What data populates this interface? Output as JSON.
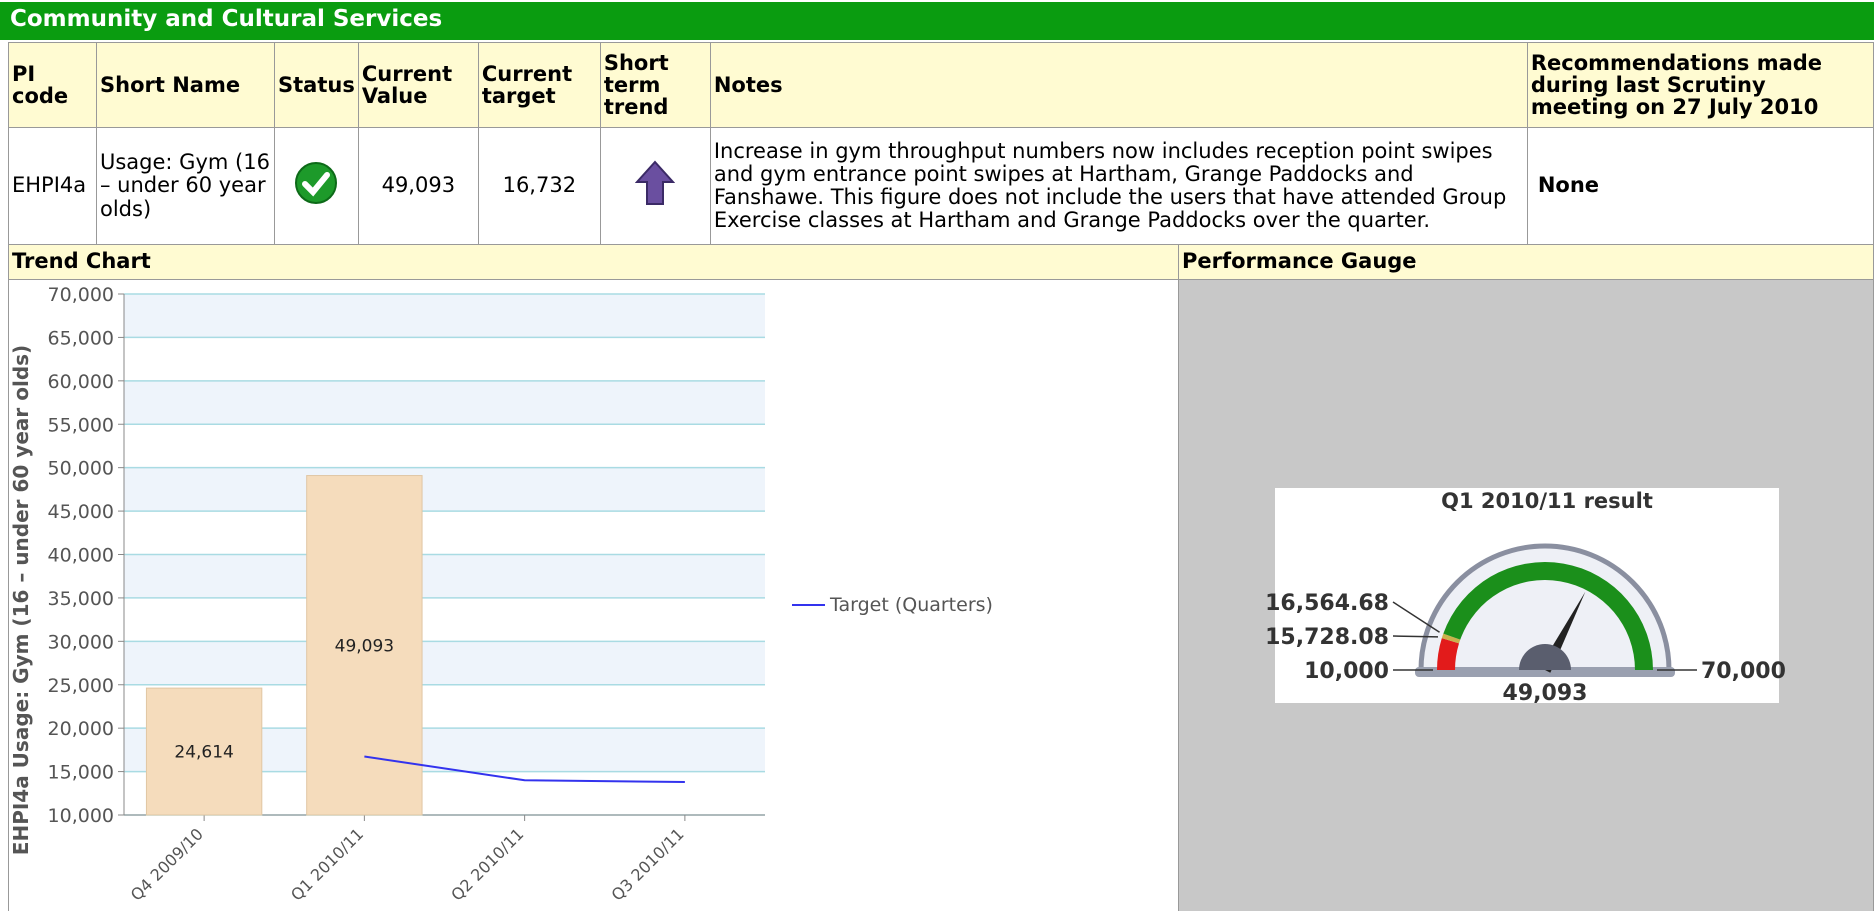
{
  "section_title": "Community and Cultural Services",
  "table": {
    "headers": [
      "PI code",
      "Short Name",
      "Status",
      "Current Value",
      "Current target",
      "Short term trend",
      "Notes",
      "Recommendations made during last Scrutiny meeting on 27 July 2010"
    ],
    "row": {
      "pi_code": "EHPI4a",
      "short_name": "Usage: Gym (16 – under 60 year olds)",
      "current_value": "49,093",
      "current_target": "16,732",
      "notes": "Increase in gym throughput numbers now includes reception point swipes and gym entrance point swipes at Hartham, Grange Paddocks and Fanshawe. This figure does not include the users that have attended Group Exercise classes at Hartham and Grange Paddocks over the quarter.",
      "recommendations": "None"
    }
  },
  "trend_chart_title": "Trend Chart",
  "gauge_panel_title": "Performance Gauge",
  "chart_data": [
    {
      "type": "bar",
      "y_label": "EHPI4a Usage: Gym (16 – under 60 year olds)",
      "categories": [
        "Q4 2009/10",
        "Q1 2010/11",
        "Q2 2010/11",
        "Q3 2010/11"
      ],
      "values": [
        24614,
        49093,
        null,
        null
      ],
      "value_labels": [
        "24,614",
        "49,093",
        null,
        null
      ],
      "color": "#f5dcbc",
      "lines": [
        {
          "name": "Target (Quarters)",
          "color": "#3333ee",
          "values": [
            null,
            16732,
            14000,
            13800
          ]
        }
      ],
      "ylim": [
        10000,
        70000
      ],
      "yticks": [
        {
          "value": 10000,
          "label": "10,000"
        },
        {
          "value": 15000,
          "label": "15,000"
        },
        {
          "value": 20000,
          "label": "20,000"
        },
        {
          "value": 25000,
          "label": "25,000"
        },
        {
          "value": 30000,
          "label": "30,000"
        },
        {
          "value": 35000,
          "label": "35,000"
        },
        {
          "value": 40000,
          "label": "40,000"
        },
        {
          "value": 45000,
          "label": "45,000"
        },
        {
          "value": 50000,
          "label": "50,000"
        },
        {
          "value": 55000,
          "label": "55,000"
        },
        {
          "value": 60000,
          "label": "60,000"
        },
        {
          "value": 65000,
          "label": "65,000"
        },
        {
          "value": 70000,
          "label": "70,000"
        }
      ],
      "grid": true
    },
    {
      "type": "gauge",
      "title": "Q1 2010/11 result",
      "ylim": [
        10000,
        70000
      ],
      "yticks": [
        {
          "value": 10000,
          "label": "10,000"
        },
        {
          "value": 15728.08,
          "label": "15,728.08"
        },
        {
          "value": 16564.68,
          "label": "16,564.68"
        },
        {
          "value": 70000,
          "label": "70,000"
        }
      ],
      "zone_colors": [
        "#e21b1b",
        "#c9b24c",
        "#1b8f1b"
      ],
      "value": 49093,
      "value_label": "49,093"
    }
  ]
}
